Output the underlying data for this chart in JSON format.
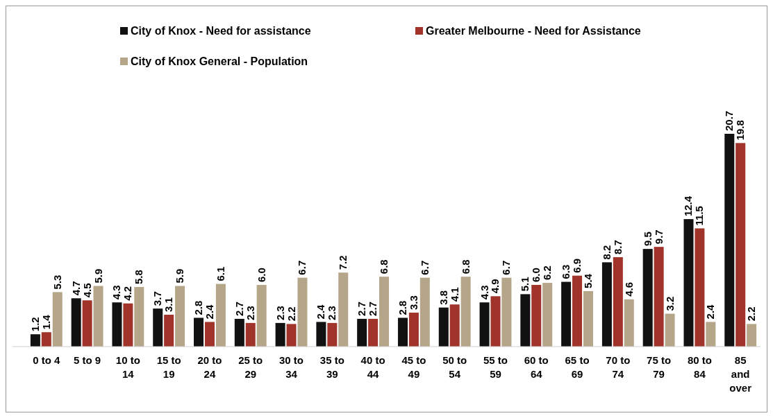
{
  "chart_data": {
    "type": "bar",
    "categories": [
      "0 to 4",
      "5 to 9",
      "10 to 14",
      "15 to 19",
      "20 to 24",
      "25 to 29",
      "30 to 34",
      "35 to 39",
      "40 to 44",
      "45 to 49",
      "50 to 54",
      "55 to 59",
      "60 to 64",
      "65 to 69",
      "70 to 74",
      "75 to 79",
      "80 to 84",
      "85 and over"
    ],
    "series": [
      {
        "name": "City of Knox - Need for assistance",
        "color": "#111111",
        "values": [
          1.2,
          4.7,
          4.3,
          3.7,
          2.8,
          2.7,
          2.3,
          2.4,
          2.7,
          2.8,
          3.8,
          4.3,
          5.1,
          6.3,
          8.2,
          9.5,
          12.4,
          20.7
        ],
        "value_labels": [
          "1.2",
          "4.7",
          "4.3",
          "3.7",
          "2.8",
          "2.7",
          "2.3",
          "2.4",
          "2.7",
          "2.8",
          "3.8",
          "4.3",
          "5.1",
          "6.3",
          "8.2",
          "9.5",
          "12.4",
          "20.7"
        ]
      },
      {
        "name": "Greater Melbourne - Need for Assistance",
        "color": "#a0342a",
        "values": [
          1.4,
          4.5,
          4.2,
          3.1,
          2.4,
          2.3,
          2.2,
          2.3,
          2.7,
          3.3,
          4.1,
          4.9,
          6.0,
          6.9,
          8.7,
          9.7,
          11.5,
          19.8
        ],
        "value_labels": [
          "1.4",
          "4.5",
          "4.2",
          "3.1",
          "2.4",
          "2.3",
          "2.2",
          "2.3",
          "2.7",
          "3.3",
          "4.1",
          "4.9",
          "6.0",
          "6.9",
          "8.7",
          "9.7",
          "11.5",
          "19.8"
        ]
      },
      {
        "name": "City of Knox General - Population",
        "color": "#b5a68a",
        "values": [
          5.3,
          5.9,
          5.8,
          5.9,
          6.1,
          6.0,
          6.7,
          7.2,
          6.8,
          6.7,
          6.8,
          6.7,
          6.2,
          5.4,
          4.6,
          3.2,
          2.4,
          2.2
        ],
        "value_labels": [
          "5.3",
          "5.9",
          "5.8",
          "5.9",
          "6.1",
          "6.0",
          "6.7",
          "7.2",
          "6.8",
          "6.7",
          "6.8",
          "6.7",
          "6.2",
          "5.4",
          "4.6",
          "3.2",
          "2.4",
          "2.2"
        ]
      }
    ],
    "legend": "top left"
  }
}
